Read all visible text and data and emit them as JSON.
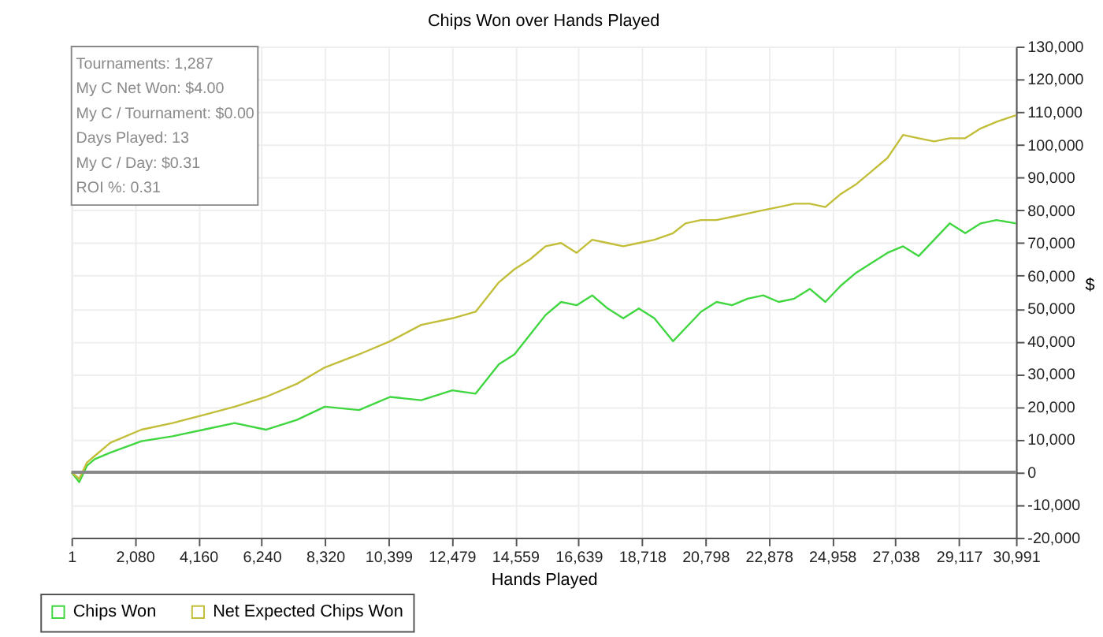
{
  "chart_data": {
    "type": "line",
    "title": "Chips Won over Hands Played",
    "xlabel": "Hands Played",
    "ylabel": "$",
    "x": [
      1,
      256,
      511,
      766,
      1276,
      2296,
      3316,
      4336,
      5356,
      6376,
      7396,
      8314,
      9436,
      10456,
      11476,
      12496,
      13261,
      14026,
      14536,
      15046,
      15556,
      16066,
      16576,
      17086,
      17596,
      18106,
      18616,
      19126,
      19738,
      20146,
      20656,
      21166,
      21676,
      22186,
      22696,
      23206,
      23716,
      24226,
      24736,
      25246,
      25756,
      26266,
      26776,
      27286,
      27796,
      28306,
      28816,
      29326,
      29836,
      30346,
      30991
    ],
    "series": [
      {
        "name": "Chips Won",
        "color": "#3fd63f",
        "values": [
          0,
          -3000,
          2000,
          4000,
          6000,
          9500,
          11000,
          13000,
          15000,
          13000,
          16000,
          20000,
          19000,
          23000,
          22000,
          25000,
          24000,
          33000,
          36000,
          42000,
          48000,
          52000,
          51000,
          54000,
          50000,
          47000,
          50000,
          47000,
          40000,
          44000,
          49000,
          52000,
          51000,
          53000,
          54000,
          52000,
          53000,
          56000,
          52000,
          57000,
          61000,
          64000,
          67000,
          69000,
          66000,
          71000,
          76000,
          73000,
          76000,
          77000,
          76000
        ]
      },
      {
        "name": "Net Expected Chips Won",
        "color": "#c2be3a",
        "values": [
          0,
          -2000,
          3000,
          5000,
          9000,
          13000,
          15000,
          17500,
          20000,
          23000,
          27000,
          32000,
          36000,
          40000,
          45000,
          47000,
          49000,
          58000,
          62000,
          65000,
          69000,
          70000,
          67000,
          71000,
          70000,
          69000,
          70000,
          71000,
          73000,
          76000,
          77000,
          77000,
          78000,
          79000,
          80000,
          81000,
          82000,
          82000,
          81000,
          85000,
          88000,
          92000,
          96000,
          103000,
          102000,
          101000,
          102000,
          102000,
          105000,
          107000,
          109000
        ]
      }
    ],
    "xlim": [
      1,
      30991
    ],
    "xticks": [
      1,
      {
        "value": 2080,
        "label": "2,080"
      },
      {
        "value": 4160,
        "label": "4,160"
      },
      {
        "value": 6240,
        "label": "6,240"
      },
      {
        "value": 8320,
        "label": "8,320"
      },
      {
        "value": 10399,
        "label": "10,399"
      },
      {
        "value": 12479,
        "label": "12,479"
      },
      {
        "value": 14559,
        "label": "14,559"
      },
      {
        "value": 16639,
        "label": "16,639"
      },
      {
        "value": 18718,
        "label": "18,718"
      },
      {
        "value": 20798,
        "label": "20,798"
      },
      {
        "value": 22878,
        "label": "22,878"
      },
      {
        "value": 24958,
        "label": "24,958"
      },
      {
        "value": 27038,
        "label": "27,038"
      },
      {
        "value": 29117,
        "label": "29,117"
      },
      {
        "value": 30991,
        "label": "30,991"
      }
    ],
    "ylim": [
      -20000,
      130000
    ],
    "yticks": [
      {
        "value": -20000,
        "label": "-20,000"
      },
      {
        "value": -10000,
        "label": "-10,000"
      },
      0,
      {
        "value": 10000,
        "label": "10,000"
      },
      {
        "value": 20000,
        "label": "20,000"
      },
      {
        "value": 30000,
        "label": "30,000"
      },
      {
        "value": 40000,
        "label": "40,000"
      },
      {
        "value": 50000,
        "label": "50,000"
      },
      {
        "value": 60000,
        "label": "60,000"
      },
      {
        "value": 70000,
        "label": "70,000"
      },
      {
        "value": 80000,
        "label": "80,000"
      },
      {
        "value": 90000,
        "label": "90,000"
      },
      {
        "value": 100000,
        "label": "100,000"
      },
      {
        "value": 110000,
        "label": "110,000"
      },
      {
        "value": 120000,
        "label": "120,000"
      },
      {
        "value": 130000,
        "label": "130,000"
      }
    ],
    "ref_lines": [
      {
        "axis": "y",
        "value": 0,
        "color": "#888888"
      }
    ],
    "annotations": [
      "Tournaments: 1,287",
      "My C Net Won: $4.00",
      "My C / Tournament: $0.00",
      "Days Played: 13",
      "My C / Day: $0.31",
      "ROI %: 0.31"
    ],
    "grid": true,
    "legend": "bottom left",
    "line_style": "solid",
    "marker": "none"
  }
}
